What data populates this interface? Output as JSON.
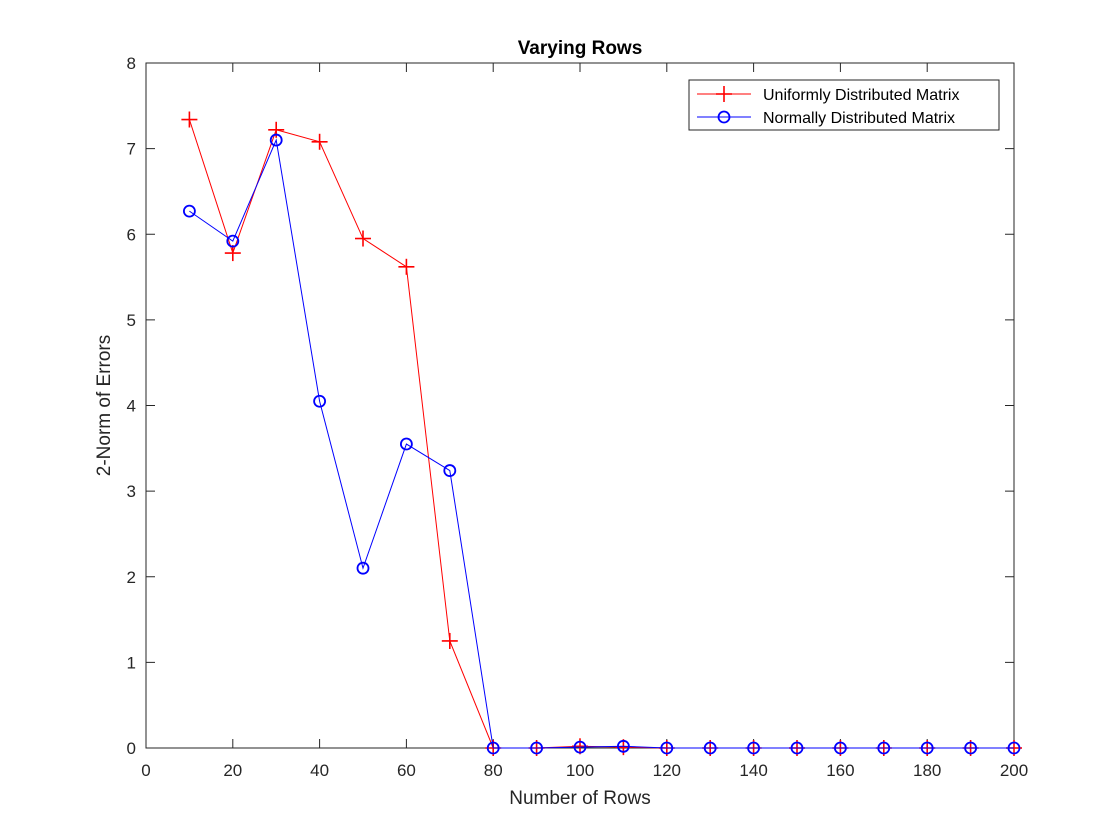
{
  "chart_data": {
    "type": "line",
    "title": "Varying Rows",
    "xlabel": "Number of Rows",
    "ylabel": "2-Norm of Errors",
    "xlim": [
      0,
      200
    ],
    "ylim": [
      0,
      8
    ],
    "xticks": [
      0,
      20,
      40,
      60,
      80,
      100,
      120,
      140,
      160,
      180,
      200
    ],
    "yticks": [
      0,
      1,
      2,
      3,
      4,
      5,
      6,
      7,
      8
    ],
    "grid": false,
    "legend_position": "top-right",
    "x": [
      10,
      20,
      30,
      40,
      50,
      60,
      70,
      80,
      90,
      100,
      110,
      120,
      130,
      140,
      150,
      160,
      170,
      180,
      190,
      200
    ],
    "series": [
      {
        "name": "Uniformly Distributed Matrix",
        "color": "#ff0000",
        "marker": "plus",
        "values": [
          7.34,
          5.78,
          7.22,
          7.08,
          5.95,
          5.62,
          1.25,
          0,
          0,
          0.02,
          0.01,
          0,
          0,
          0,
          0,
          0,
          0,
          0,
          0,
          0
        ]
      },
      {
        "name": "Normally Distributed Matrix",
        "color": "#0000ff",
        "marker": "circle",
        "values": [
          6.27,
          5.92,
          7.1,
          4.05,
          2.1,
          3.55,
          3.24,
          0,
          0,
          0.01,
          0.02,
          0,
          0,
          0,
          0,
          0,
          0,
          0,
          0,
          0
        ]
      }
    ]
  }
}
